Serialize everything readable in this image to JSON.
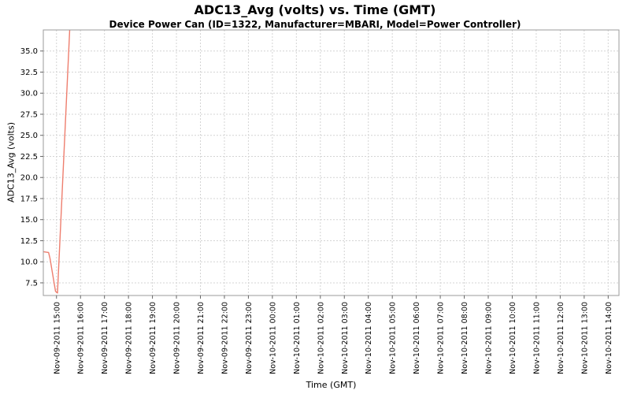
{
  "chart_data": {
    "type": "line",
    "title": "ADC13_Avg (volts) vs. Time (GMT)",
    "subtitle": "Device Power Can (ID=1322, Manufacturer=MBARI, Model=Power Controller)",
    "xlabel": "Time (GMT)",
    "ylabel": "ADC13_Avg (volts)",
    "grid": true,
    "legend_position": "none",
    "ylim": [
      6.0,
      37.5
    ],
    "xlim_hours": [
      -0.55,
      23.45
    ],
    "x_unit": "hours relative to first tick (Nov-09-2011 15:00)",
    "y_ticks": [
      7.5,
      10.0,
      12.5,
      15.0,
      17.5,
      20.0,
      22.5,
      25.0,
      27.5,
      30.0,
      32.5,
      35.0
    ],
    "x_tick_labels": [
      "Nov-09-2011 15:00",
      "Nov-09-2011 16:00",
      "Nov-09-2011 17:00",
      "Nov-09-2011 18:00",
      "Nov-09-2011 19:00",
      "Nov-09-2011 20:00",
      "Nov-09-2011 21:00",
      "Nov-09-2011 22:00",
      "Nov-09-2011 23:00",
      "Nov-10-2011 00:00",
      "Nov-10-2011 01:00",
      "Nov-10-2011 02:00",
      "Nov-10-2011 03:00",
      "Nov-10-2011 04:00",
      "Nov-10-2011 05:00",
      "Nov-10-2011 06:00",
      "Nov-10-2011 07:00",
      "Nov-10-2011 08:00",
      "Nov-10-2011 09:00",
      "Nov-10-2011 10:00",
      "Nov-10-2011 11:00",
      "Nov-10-2011 12:00",
      "Nov-10-2011 13:00",
      "Nov-10-2011 14:00"
    ],
    "series": [
      {
        "name": "ADC13_Avg",
        "color": "#ee7e6e",
        "points": [
          {
            "x": -0.55,
            "y": 11.2
          },
          {
            "x": -0.33,
            "y": 11.1
          },
          {
            "x": -0.27,
            "y": 10.4
          },
          {
            "x": -0.04,
            "y": 6.5
          },
          {
            "x": 0.04,
            "y": 6.3
          },
          {
            "x": 0.55,
            "y": 37.5
          }
        ]
      }
    ],
    "colors": {
      "plot_background": "#ffffff",
      "gridline": "#d4d4d4",
      "plot_border": "#9b9b9b",
      "tick": "#666666",
      "text": "#000000"
    }
  }
}
